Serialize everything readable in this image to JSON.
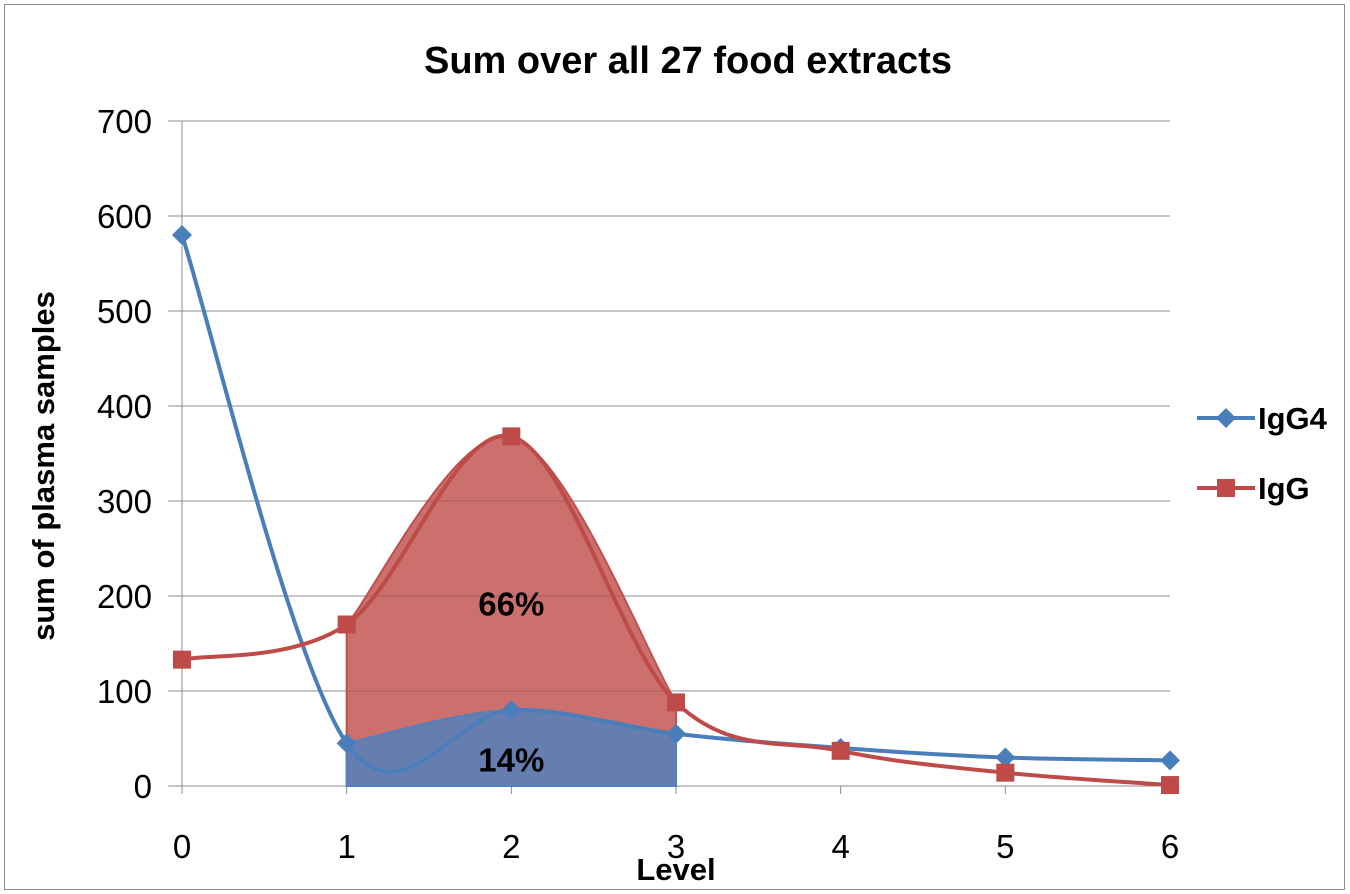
{
  "chart_data": {
    "type": "line",
    "title": "Sum over all 27 food extracts",
    "xlabel": "Level",
    "ylabel": "sum of plasma samples",
    "x": [
      0,
      1,
      2,
      3,
      4,
      5,
      6
    ],
    "x_ticks": [
      "0",
      "1",
      "2",
      "3",
      "4",
      "5",
      "6"
    ],
    "y_ticks": [
      "0",
      "100",
      "200",
      "300",
      "400",
      "500",
      "600",
      "700"
    ],
    "ylim": [
      0,
      700
    ],
    "xlim": [
      0,
      6
    ],
    "grid": "horizontal",
    "legend_position": "right",
    "series": [
      {
        "name": "IgG4",
        "marker": "diamond",
        "color": "#4a7ebb",
        "values": [
          580,
          45,
          80,
          55,
          40,
          30,
          27
        ]
      },
      {
        "name": "IgG",
        "marker": "square",
        "color": "#be4b48",
        "values": [
          133,
          170,
          368,
          88,
          37,
          14,
          1
        ]
      }
    ],
    "shaded_regions": [
      {
        "series": "IgG",
        "from_x": 1,
        "to_x": 3,
        "label": "66%",
        "color": "#c0504d"
      },
      {
        "series": "IgG4",
        "from_x": 1,
        "to_x": 3,
        "label": "14%",
        "color": "#4f81bd"
      }
    ]
  }
}
